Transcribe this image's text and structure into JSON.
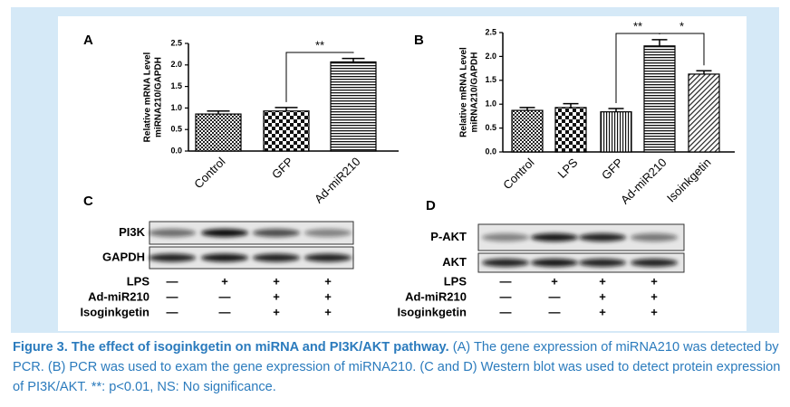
{
  "chart_data": [
    {
      "type": "bar",
      "panel": "A",
      "ylabel": [
        "Relative mRNA Level",
        "miRNA210/GAPDH"
      ],
      "categories": [
        "Control",
        "GFP",
        "Ad-miR210"
      ],
      "values": [
        0.86,
        0.93,
        2.07
      ],
      "errors": [
        0.07,
        0.08,
        0.08
      ],
      "patterns": [
        "check",
        "bigcheck",
        "hlines"
      ],
      "ylim": [
        0,
        2.5
      ],
      "yticks": [
        {
          "value": 0,
          "label": "0.0"
        },
        {
          "value": 0.5,
          "label": "0.5"
        },
        {
          "value": 1,
          "label": "1.0"
        },
        {
          "value": 1.5,
          "label": "1.5"
        },
        {
          "value": 2,
          "label": "2.0"
        },
        {
          "value": 2.5,
          "label": "2.5"
        }
      ],
      "annotations": [
        "**"
      ]
    },
    {
      "type": "bar",
      "panel": "B",
      "ylabel": [
        "Relative mRNA Level",
        "miRNA210/GAPDH"
      ],
      "categories": [
        "Control",
        "LPS",
        "GFP",
        "Ad-miR210",
        "Isoinkgetin"
      ],
      "values": [
        0.87,
        0.93,
        0.84,
        2.22,
        1.63
      ],
      "errors": [
        0.06,
        0.08,
        0.07,
        0.13,
        0.07
      ],
      "patterns": [
        "check",
        "bigcheck",
        "vlines",
        "hlines",
        "dlines"
      ],
      "ylim": [
        0,
        2.5
      ],
      "yticks": [
        {
          "value": 0,
          "label": "0.0"
        },
        {
          "value": 0.5,
          "label": "0.5"
        },
        {
          "value": 1,
          "label": "1.0"
        },
        {
          "value": 1.5,
          "label": "1.5"
        },
        {
          "value": 2,
          "label": "2.0"
        },
        {
          "value": 2.5,
          "label": "2.5"
        }
      ],
      "annotations": [
        "**",
        "*"
      ]
    }
  ],
  "blots": [
    {
      "panel": "C",
      "rows": [
        "PI3K",
        "GAPDH"
      ],
      "treatments": [
        {
          "name": "LPS",
          "signs": [
            "—",
            "+",
            "+",
            "+"
          ]
        },
        {
          "name": "Ad-miR210",
          "signs": [
            "—",
            "—",
            "+",
            "+"
          ]
        },
        {
          "name": "Isoginkgetin",
          "signs": [
            "—",
            "—",
            "+",
            "+"
          ]
        }
      ]
    },
    {
      "panel": "D",
      "rows": [
        "P-AKT",
        "AKT"
      ],
      "treatments": [
        {
          "name": "LPS",
          "signs": [
            "—",
            "+",
            "+",
            "+"
          ]
        },
        {
          "name": "Ad-miR210",
          "signs": [
            "—",
            "—",
            "+",
            "+"
          ]
        },
        {
          "name": "Isoginkgetin",
          "signs": [
            "—",
            "—",
            "+",
            "+"
          ]
        }
      ]
    }
  ],
  "caption": {
    "title": "Figure 3. The effect of isoginkgetin on miRNA and PI3K/AKT pathway.",
    "text": "(A) The gene expression of miRNA210 was detected by PCR. (B) PCR was used to exam the gene expression of miRNA210. (C and D) Western blot was used to detect protein expression of PI3K/AKT. **: p<0.01, NS: No significance."
  }
}
